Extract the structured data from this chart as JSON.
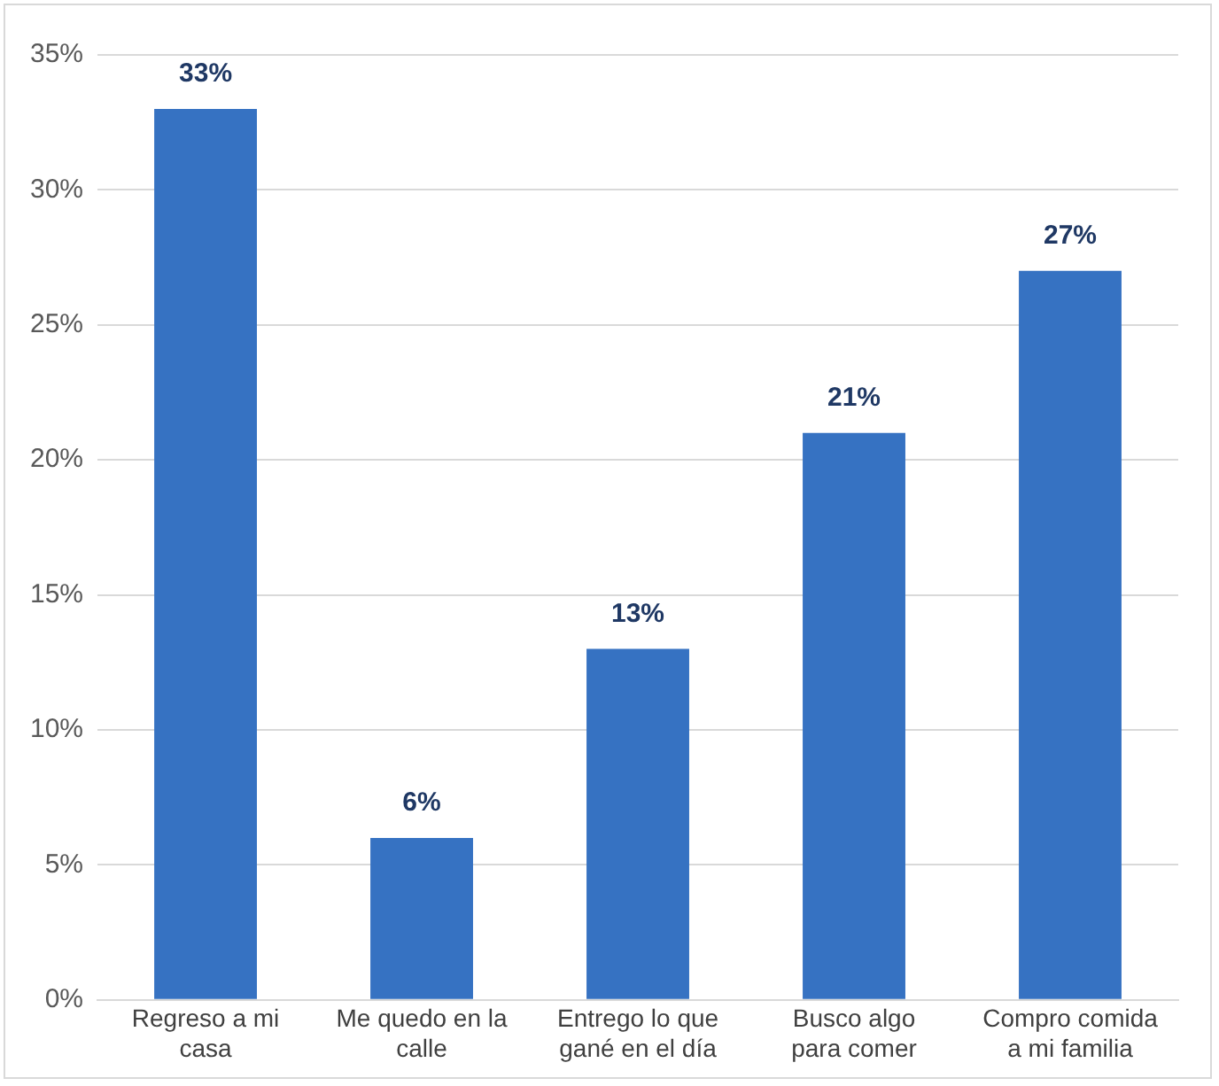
{
  "chart_data": {
    "type": "bar",
    "categories": [
      "Regreso a mi casa",
      "Me quedo en la calle",
      "Entrego lo que gané en el día",
      "Busco algo para comer",
      "Compro comida a mi familia"
    ],
    "values": [
      33,
      6,
      13,
      21,
      27
    ],
    "color": "#3672c2",
    "value_labels": [
      "33%",
      "6%",
      "13%",
      "21%",
      "27%"
    ],
    "ylim": [
      0,
      35
    ],
    "yticks": [
      {
        "value": 0,
        "label": "0%"
      },
      {
        "value": 5,
        "label": "5%"
      },
      {
        "value": 10,
        "label": "10%"
      },
      {
        "value": 15,
        "label": "15%"
      },
      {
        "value": 20,
        "label": "20%"
      },
      {
        "value": 25,
        "label": "25%"
      },
      {
        "value": 30,
        "label": "30%"
      },
      {
        "value": 35,
        "label": "35%"
      }
    ],
    "grid": "y",
    "legend": false
  }
}
